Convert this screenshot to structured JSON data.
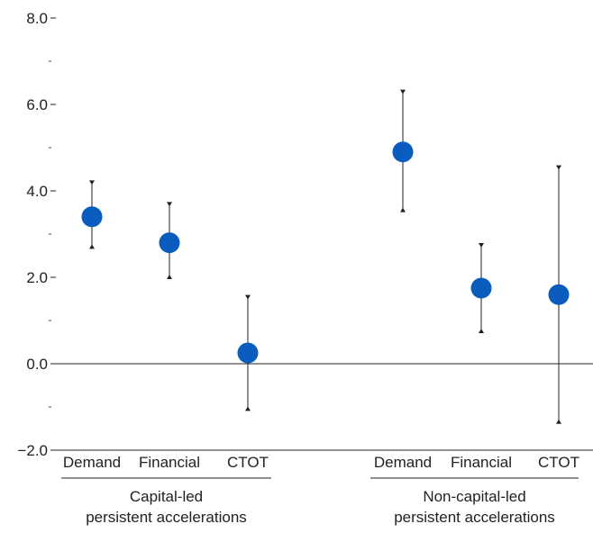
{
  "chart_data": {
    "type": "scatter",
    "title": "",
    "xlabel": "",
    "ylabel": "",
    "ylim": [
      -2.0,
      8.0
    ],
    "y_ticks": [
      "8.0",
      "6.0",
      "4.0",
      "2.0",
      "0.0",
      "−2.0"
    ],
    "y_tick_values": [
      8,
      6,
      4,
      2,
      0,
      -2
    ],
    "minor_ticks": [
      7,
      5,
      3,
      1,
      -1
    ],
    "grid": false,
    "marker_color": "#0b5cbf",
    "groups": [
      {
        "label_line1": "Capital-led",
        "label_line2": "persistent accelerations",
        "points": [
          {
            "category": "Demand",
            "value": 3.4,
            "low": 2.7,
            "high": 4.2
          },
          {
            "category": "Financial",
            "value": 2.8,
            "low": 2.0,
            "high": 3.7
          },
          {
            "category": "CTOT",
            "value": 0.25,
            "low": -1.05,
            "high": 1.55
          }
        ]
      },
      {
        "label_line1": "Non-capital-led",
        "label_line2": "persistent accelerations",
        "points": [
          {
            "category": "Demand",
            "value": 4.9,
            "low": 3.55,
            "high": 6.3
          },
          {
            "category": "Financial",
            "value": 1.75,
            "low": 0.75,
            "high": 2.75
          },
          {
            "category": "CTOT",
            "value": 1.6,
            "low": -1.35,
            "high": 4.55
          }
        ]
      }
    ]
  }
}
